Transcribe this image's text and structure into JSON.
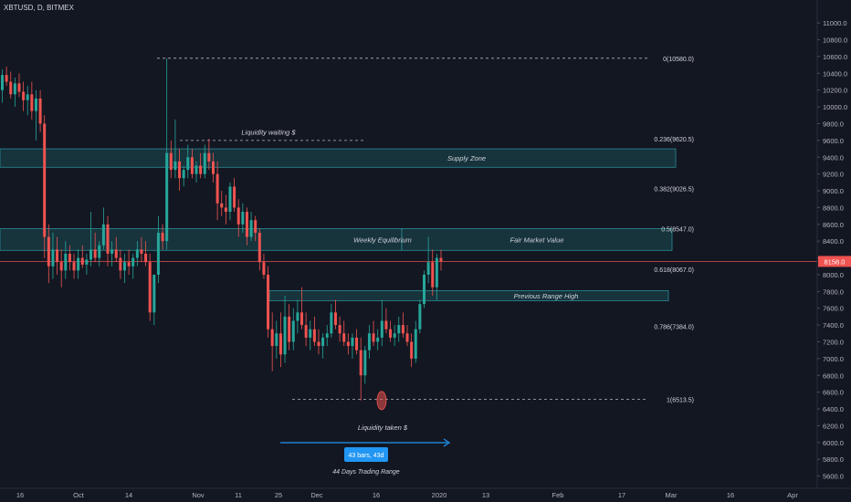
{
  "header": {
    "symbol_line": "XBTUSD, D, BITMEX"
  },
  "colors": {
    "background": "#131722",
    "bull": "#26a69a",
    "bear": "#ef5350",
    "zone_fill": "#1c4a52",
    "zone_stroke": "#2a8c96",
    "price_line": "#ef5350",
    "arrow": "#2196f3",
    "badge": "#2196f3",
    "axis_text": "#b2b5be",
    "annotation_text": "#d1d4dc"
  },
  "chart_data": {
    "type": "candlestick",
    "price_axis": {
      "ticks": [
        "11000.0",
        "10800.0",
        "10600.0",
        "10400.0",
        "10200.0",
        "10000.0",
        "9800.0",
        "9600.0",
        "9400.0",
        "9200.0",
        "9000.0",
        "8800.0",
        "8600.0",
        "8400.0",
        "8200.0",
        "8000.0",
        "7800.0",
        "7600.0",
        "7400.0",
        "7200.0",
        "7000.0",
        "6800.0",
        "6600.0",
        "6400.0",
        "6200.0",
        "6000.0",
        "5800.0",
        "5600.0"
      ],
      "range": [
        5530,
        11100
      ]
    },
    "time_axis": {
      "labels": [
        "16",
        "Oct",
        "14",
        "Nov",
        "11",
        "25",
        "Dec",
        "16",
        "2020",
        "13",
        "Feb",
        "17",
        "Mar",
        "16",
        "Apr"
      ]
    },
    "last_price": {
      "label": "8158.0",
      "value": 8158
    },
    "fib_levels": [
      {
        "label": "0(10580.0)",
        "value": 10580
      },
      {
        "label": "0.236(9620.5)",
        "value": 9620.5
      },
      {
        "label": "0.382(9026.5)",
        "value": 9026.5
      },
      {
        "label": "0.5(8547.0)",
        "value": 8547
      },
      {
        "label": "0.618(8067.0)",
        "value": 8067
      },
      {
        "label": "0.786(7384.0)",
        "value": 7384
      },
      {
        "label": "1(6513.5)",
        "value": 6513.5
      }
    ],
    "zones": [
      {
        "label": "Supply Zone",
        "top": 9500,
        "bottom": 9280
      },
      {
        "label": "Weekly Equilibrium",
        "top": 8550,
        "bottom": 8290
      },
      {
        "label": "Fair Market Value",
        "top": 8550,
        "bottom": 8290
      },
      {
        "label": "Previous Range High",
        "top": 7810,
        "bottom": 7690
      }
    ],
    "annotations": {
      "liquidity_waiting": "Liquidity waiting $",
      "liquidity_taken": "Liquidity taken $",
      "bars_badge": "43 bars, 43d",
      "trading_range": "44 Days Trading Range"
    },
    "candles": [
      {
        "o": 10200,
        "h": 10450,
        "l": 10050,
        "c": 10380
      },
      {
        "o": 10380,
        "h": 10480,
        "l": 10250,
        "c": 10300
      },
      {
        "o": 10300,
        "h": 10420,
        "l": 10100,
        "c": 10150
      },
      {
        "o": 10150,
        "h": 10350,
        "l": 10000,
        "c": 10280
      },
      {
        "o": 10280,
        "h": 10400,
        "l": 10120,
        "c": 10180
      },
      {
        "o": 10180,
        "h": 10300,
        "l": 9950,
        "c": 10080
      },
      {
        "o": 10080,
        "h": 10250,
        "l": 9900,
        "c": 10150
      },
      {
        "o": 10150,
        "h": 10300,
        "l": 9850,
        "c": 9950
      },
      {
        "o": 9950,
        "h": 10200,
        "l": 9600,
        "c": 10100
      },
      {
        "o": 10100,
        "h": 10200,
        "l": 9700,
        "c": 9800
      },
      {
        "o": 9800,
        "h": 9900,
        "l": 8200,
        "c": 8450
      },
      {
        "o": 8450,
        "h": 8600,
        "l": 7900,
        "c": 8100
      },
      {
        "o": 8100,
        "h": 8500,
        "l": 7950,
        "c": 8300
      },
      {
        "o": 8300,
        "h": 8450,
        "l": 8000,
        "c": 8150
      },
      {
        "o": 8150,
        "h": 8300,
        "l": 7850,
        "c": 8050
      },
      {
        "o": 8050,
        "h": 8400,
        "l": 7950,
        "c": 8250
      },
      {
        "o": 8250,
        "h": 8350,
        "l": 8050,
        "c": 8150
      },
      {
        "o": 8150,
        "h": 8250,
        "l": 7950,
        "c": 8050
      },
      {
        "o": 8050,
        "h": 8300,
        "l": 7950,
        "c": 8200
      },
      {
        "o": 8200,
        "h": 8350,
        "l": 8080,
        "c": 8120
      },
      {
        "o": 8120,
        "h": 8250,
        "l": 8000,
        "c": 8180
      },
      {
        "o": 8180,
        "h": 8750,
        "l": 8100,
        "c": 8300
      },
      {
        "o": 8300,
        "h": 8500,
        "l": 8150,
        "c": 8200
      },
      {
        "o": 8200,
        "h": 8400,
        "l": 8100,
        "c": 8350
      },
      {
        "o": 8350,
        "h": 8800,
        "l": 8300,
        "c": 8600
      },
      {
        "o": 8600,
        "h": 8700,
        "l": 8100,
        "c": 8250
      },
      {
        "o": 8250,
        "h": 8400,
        "l": 8100,
        "c": 8300
      },
      {
        "o": 8300,
        "h": 8450,
        "l": 8150,
        "c": 8200
      },
      {
        "o": 8200,
        "h": 8300,
        "l": 7950,
        "c": 8050
      },
      {
        "o": 8050,
        "h": 8250,
        "l": 7900,
        "c": 8150
      },
      {
        "o": 8150,
        "h": 8300,
        "l": 8000,
        "c": 8100
      },
      {
        "o": 8100,
        "h": 8250,
        "l": 7950,
        "c": 8200
      },
      {
        "o": 8200,
        "h": 8400,
        "l": 8100,
        "c": 8300
      },
      {
        "o": 8300,
        "h": 8450,
        "l": 8150,
        "c": 8250
      },
      {
        "o": 8250,
        "h": 8400,
        "l": 8100,
        "c": 8150
      },
      {
        "o": 8150,
        "h": 8250,
        "l": 7450,
        "c": 7550
      },
      {
        "o": 7550,
        "h": 8000,
        "l": 7400,
        "c": 8000
      },
      {
        "o": 8000,
        "h": 8700,
        "l": 7900,
        "c": 8500
      },
      {
        "o": 8500,
        "h": 8600,
        "l": 8300,
        "c": 8400
      },
      {
        "o": 8400,
        "h": 10580,
        "l": 8300,
        "c": 9450
      },
      {
        "o": 9450,
        "h": 9600,
        "l": 9150,
        "c": 9250
      },
      {
        "o": 9250,
        "h": 9850,
        "l": 9150,
        "c": 9350
      },
      {
        "o": 9350,
        "h": 9500,
        "l": 9000,
        "c": 9150
      },
      {
        "o": 9150,
        "h": 9300,
        "l": 9050,
        "c": 9250
      },
      {
        "o": 9250,
        "h": 9550,
        "l": 9150,
        "c": 9400
      },
      {
        "o": 9400,
        "h": 9500,
        "l": 9150,
        "c": 9200
      },
      {
        "o": 9200,
        "h": 9350,
        "l": 9100,
        "c": 9300
      },
      {
        "o": 9300,
        "h": 9450,
        "l": 9150,
        "c": 9200
      },
      {
        "o": 9200,
        "h": 9550,
        "l": 9150,
        "c": 9450
      },
      {
        "o": 9450,
        "h": 9620,
        "l": 9250,
        "c": 9350
      },
      {
        "o": 9350,
        "h": 9450,
        "l": 9100,
        "c": 9200
      },
      {
        "o": 9200,
        "h": 9350,
        "l": 8650,
        "c": 8850
      },
      {
        "o": 8850,
        "h": 9000,
        "l": 8700,
        "c": 8800
      },
      {
        "o": 8800,
        "h": 8950,
        "l": 8600,
        "c": 8750
      },
      {
        "o": 8750,
        "h": 9100,
        "l": 8650,
        "c": 9050
      },
      {
        "o": 9050,
        "h": 9150,
        "l": 8750,
        "c": 8800
      },
      {
        "o": 8800,
        "h": 8900,
        "l": 8450,
        "c": 8600
      },
      {
        "o": 8600,
        "h": 8850,
        "l": 8500,
        "c": 8750
      },
      {
        "o": 8750,
        "h": 8800,
        "l": 8350,
        "c": 8450
      },
      {
        "o": 8450,
        "h": 8750,
        "l": 8400,
        "c": 8650
      },
      {
        "o": 8650,
        "h": 8700,
        "l": 8400,
        "c": 8500
      },
      {
        "o": 8500,
        "h": 8550,
        "l": 8050,
        "c": 8150
      },
      {
        "o": 8150,
        "h": 8250,
        "l": 7950,
        "c": 8000
      },
      {
        "o": 8000,
        "h": 8100,
        "l": 7250,
        "c": 7350
      },
      {
        "o": 7350,
        "h": 7550,
        "l": 6850,
        "c": 7150
      },
      {
        "o": 7150,
        "h": 7450,
        "l": 7000,
        "c": 7300
      },
      {
        "o": 7300,
        "h": 7550,
        "l": 6900,
        "c": 7050
      },
      {
        "o": 7050,
        "h": 7750,
        "l": 6950,
        "c": 7500
      },
      {
        "o": 7500,
        "h": 7650,
        "l": 7100,
        "c": 7200
      },
      {
        "o": 7200,
        "h": 7600,
        "l": 7100,
        "c": 7450
      },
      {
        "o": 7450,
        "h": 7700,
        "l": 7300,
        "c": 7550
      },
      {
        "o": 7550,
        "h": 7850,
        "l": 7350,
        "c": 7400
      },
      {
        "o": 7400,
        "h": 7550,
        "l": 7150,
        "c": 7250
      },
      {
        "o": 7250,
        "h": 7450,
        "l": 7100,
        "c": 7350
      },
      {
        "o": 7350,
        "h": 7500,
        "l": 7150,
        "c": 7200
      },
      {
        "o": 7200,
        "h": 7350,
        "l": 7050,
        "c": 7150
      },
      {
        "o": 7150,
        "h": 7300,
        "l": 7000,
        "c": 7250
      },
      {
        "o": 7250,
        "h": 7400,
        "l": 7150,
        "c": 7300
      },
      {
        "o": 7300,
        "h": 7650,
        "l": 7250,
        "c": 7550
      },
      {
        "o": 7550,
        "h": 7700,
        "l": 7350,
        "c": 7400
      },
      {
        "o": 7400,
        "h": 7500,
        "l": 7200,
        "c": 7300
      },
      {
        "o": 7300,
        "h": 7450,
        "l": 7150,
        "c": 7200
      },
      {
        "o": 7200,
        "h": 7300,
        "l": 7050,
        "c": 7150
      },
      {
        "o": 7150,
        "h": 7300,
        "l": 7000,
        "c": 7250
      },
      {
        "o": 7250,
        "h": 7350,
        "l": 7050,
        "c": 7100
      },
      {
        "o": 7100,
        "h": 7250,
        "l": 6500,
        "c": 6800
      },
      {
        "o": 6800,
        "h": 7150,
        "l": 6700,
        "c": 7100
      },
      {
        "o": 7100,
        "h": 7400,
        "l": 7000,
        "c": 7300
      },
      {
        "o": 7300,
        "h": 7450,
        "l": 7150,
        "c": 7200
      },
      {
        "o": 7200,
        "h": 7350,
        "l": 7100,
        "c": 7250
      },
      {
        "o": 7250,
        "h": 7700,
        "l": 7150,
        "c": 7450
      },
      {
        "o": 7450,
        "h": 7600,
        "l": 7300,
        "c": 7350
      },
      {
        "o": 7350,
        "h": 7450,
        "l": 7200,
        "c": 7250
      },
      {
        "o": 7250,
        "h": 7400,
        "l": 7150,
        "c": 7300
      },
      {
        "o": 7300,
        "h": 7500,
        "l": 7200,
        "c": 7400
      },
      {
        "o": 7400,
        "h": 7550,
        "l": 7250,
        "c": 7300
      },
      {
        "o": 7300,
        "h": 7400,
        "l": 7150,
        "c": 7200
      },
      {
        "o": 7200,
        "h": 7300,
        "l": 6900,
        "c": 7000
      },
      {
        "o": 7000,
        "h": 7450,
        "l": 6950,
        "c": 7350
      },
      {
        "o": 7350,
        "h": 7700,
        "l": 7300,
        "c": 7650
      },
      {
        "o": 7650,
        "h": 8050,
        "l": 7600,
        "c": 8000
      },
      {
        "o": 8000,
        "h": 8450,
        "l": 7900,
        "c": 8150
      },
      {
        "o": 8150,
        "h": 8300,
        "l": 7750,
        "c": 7850
      },
      {
        "o": 7850,
        "h": 8250,
        "l": 7700,
        "c": 8200
      },
      {
        "o": 8200,
        "h": 8300,
        "l": 8050,
        "c": 8158
      }
    ]
  }
}
